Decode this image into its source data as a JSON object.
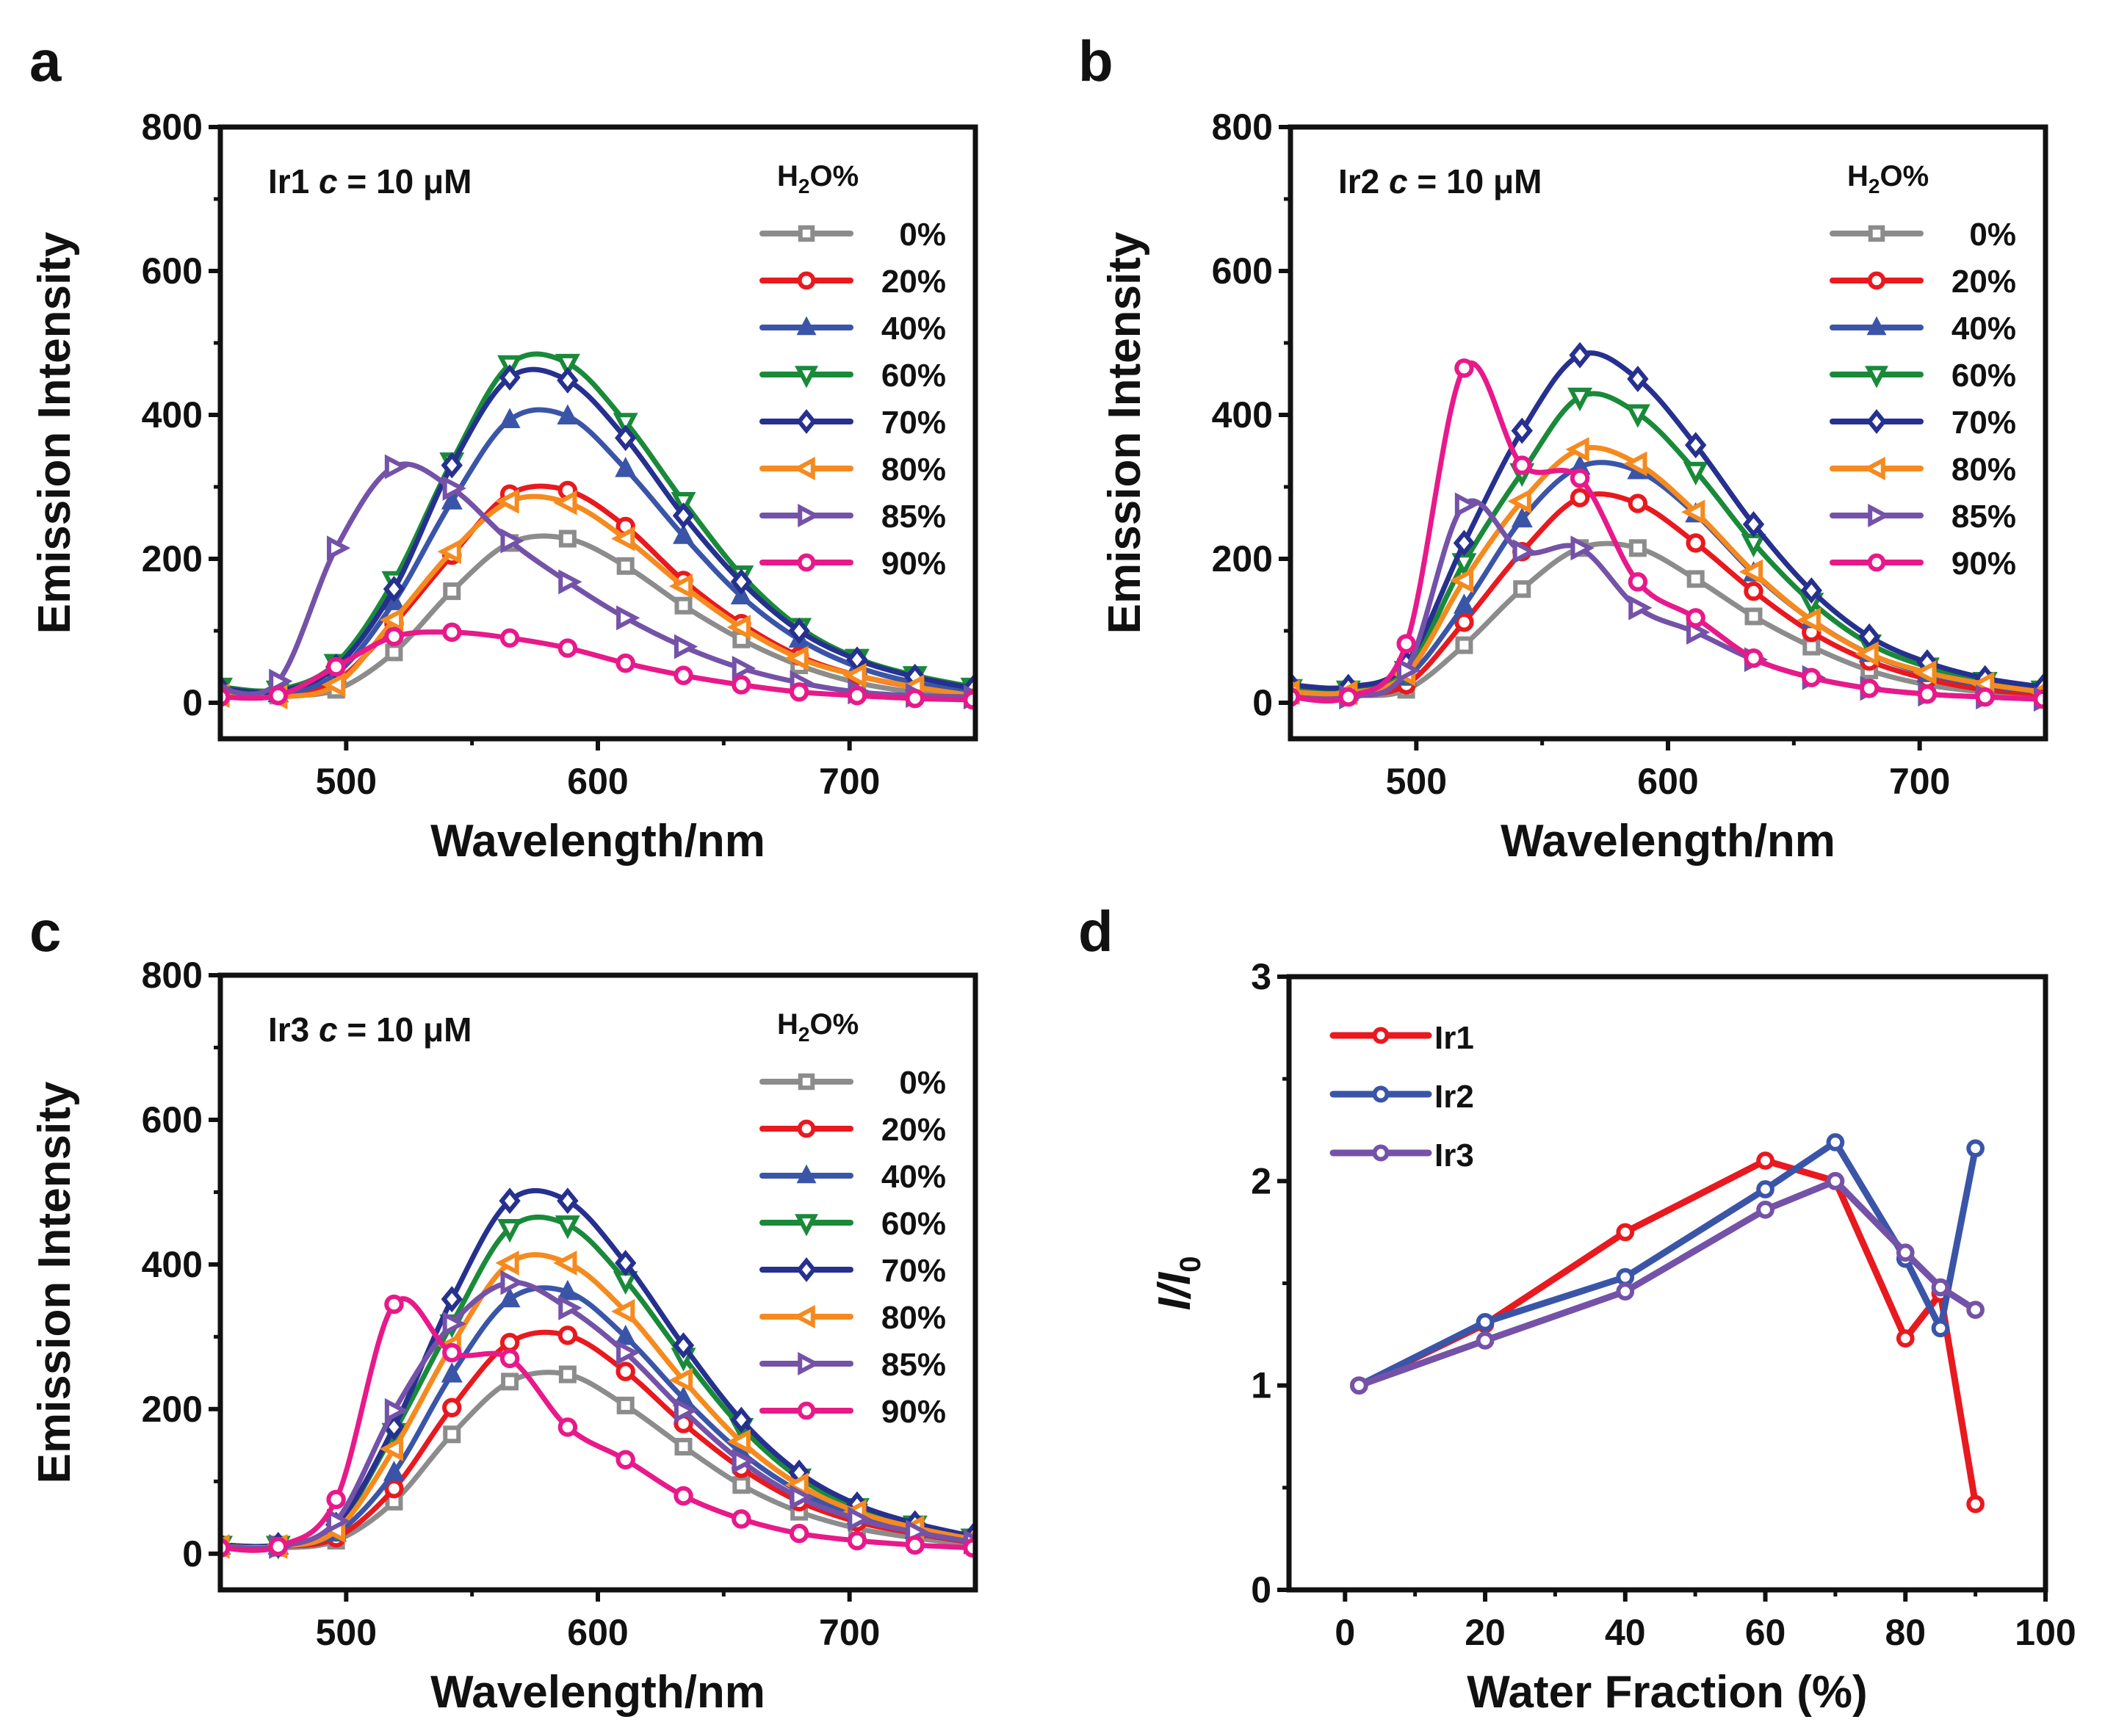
{
  "figure": {
    "panels": [
      "a",
      "b",
      "c",
      "d"
    ]
  },
  "chart_data": [
    {
      "panel": "a",
      "type": "line",
      "annotation": "Ir1 c = 10 μM",
      "annotation_parts": {
        "prefix": "Ir1 ",
        "italic": "c",
        "suffix": " = 10 μM"
      },
      "xlabel": "Wavelength/nm",
      "ylabel": "Emission Intensity",
      "xlim": [
        450,
        750
      ],
      "ylim": [
        -50,
        800
      ],
      "xticks": [
        500,
        600,
        700
      ],
      "yticks": [
        0,
        200,
        400,
        600,
        800
      ],
      "grid": false,
      "legend": {
        "title": "H2O%",
        "title_main": "H",
        "title_sub": "2",
        "title_rest": "O%",
        "position": "top-right"
      },
      "x": [
        450,
        473,
        496,
        519,
        542,
        565,
        588,
        611,
        634,
        657,
        680,
        703,
        726,
        749
      ],
      "series": [
        {
          "name": "0%",
          "color": "#8c8c8c",
          "marker": "square",
          "values": [
            10,
            10,
            18,
            70,
            155,
            222,
            228,
            190,
            135,
            88,
            52,
            28,
            15,
            10
          ]
        },
        {
          "name": "20%",
          "color": "#e8191f",
          "marker": "circle",
          "values": [
            12,
            10,
            30,
            110,
            205,
            290,
            295,
            245,
            170,
            110,
            65,
            38,
            22,
            12
          ]
        },
        {
          "name": "40%",
          "color": "#3a55a8",
          "marker": "triangle-up",
          "values": [
            15,
            12,
            40,
            140,
            280,
            393,
            398,
            325,
            232,
            148,
            88,
            50,
            28,
            15
          ]
        },
        {
          "name": "60%",
          "color": "#1a8a3a",
          "marker": "triangle-down",
          "values": [
            22,
            18,
            55,
            170,
            335,
            470,
            472,
            390,
            280,
            178,
            105,
            62,
            38,
            22
          ]
        },
        {
          "name": "70%",
          "color": "#26308f",
          "marker": "diamond",
          "values": [
            20,
            16,
            50,
            158,
            330,
            452,
            448,
            368,
            260,
            168,
            100,
            60,
            36,
            20
          ]
        },
        {
          "name": "80%",
          "color": "#f58a1f",
          "marker": "triangle-left",
          "values": [
            10,
            8,
            25,
            115,
            210,
            280,
            278,
            228,
            162,
            105,
            62,
            38,
            22,
            10
          ]
        },
        {
          "name": "85%",
          "color": "#7452a8",
          "marker": "triangle-right",
          "values": [
            18,
            30,
            215,
            328,
            298,
            225,
            168,
            118,
            78,
            48,
            28,
            15,
            10,
            8
          ]
        },
        {
          "name": "90%",
          "color": "#e8198a",
          "marker": "circle",
          "values": [
            8,
            10,
            50,
            92,
            98,
            90,
            76,
            55,
            38,
            25,
            15,
            10,
            6,
            4
          ]
        }
      ]
    },
    {
      "panel": "b",
      "type": "line",
      "annotation": "Ir2 c = 10 μM",
      "annotation_parts": {
        "prefix": "Ir2 ",
        "italic": "c",
        "suffix": " = 10 μM"
      },
      "xlabel": "Wavelength/nm",
      "ylabel": "Emission Intensity",
      "xlim": [
        450,
        750
      ],
      "ylim": [
        -50,
        800
      ],
      "xticks": [
        500,
        600,
        700
      ],
      "yticks": [
        0,
        200,
        400,
        600,
        800
      ],
      "grid": false,
      "legend": {
        "title": "H2O%",
        "title_main": "H",
        "title_sub": "2",
        "title_rest": "O%",
        "position": "top-right"
      },
      "x": [
        450,
        473,
        496,
        519,
        542,
        565,
        588,
        611,
        634,
        657,
        680,
        703,
        726,
        749
      ],
      "series": [
        {
          "name": "0%",
          "color": "#8c8c8c",
          "marker": "square",
          "values": [
            10,
            10,
            18,
            80,
            158,
            215,
            215,
            172,
            120,
            78,
            45,
            25,
            15,
            10
          ]
        },
        {
          "name": "20%",
          "color": "#e8191f",
          "marker": "circle",
          "values": [
            12,
            12,
            25,
            112,
            210,
            285,
            277,
            222,
            155,
            98,
            58,
            33,
            18,
            12
          ]
        },
        {
          "name": "40%",
          "color": "#3a55a8",
          "marker": "triangle-up",
          "values": [
            15,
            14,
            35,
            135,
            255,
            328,
            322,
            262,
            180,
            115,
            68,
            40,
            24,
            15
          ]
        },
        {
          "name": "60%",
          "color": "#1a8a3a",
          "marker": "triangle-down",
          "values": [
            20,
            18,
            45,
            195,
            320,
            425,
            402,
            322,
            222,
            140,
            82,
            50,
            30,
            18
          ]
        },
        {
          "name": "70%",
          "color": "#26308f",
          "marker": "diamond",
          "values": [
            25,
            22,
            55,
            222,
            378,
            483,
            450,
            358,
            248,
            156,
            92,
            56,
            34,
            22
          ]
        },
        {
          "name": "80%",
          "color": "#f58a1f",
          "marker": "triangle-left",
          "values": [
            15,
            14,
            40,
            170,
            280,
            352,
            332,
            265,
            182,
            115,
            68,
            42,
            26,
            15
          ]
        },
        {
          "name": "85%",
          "color": "#7452a8",
          "marker": "triangle-right",
          "values": [
            8,
            8,
            45,
            275,
            210,
            215,
            132,
            98,
            60,
            35,
            20,
            12,
            8,
            5
          ]
        },
        {
          "name": "90%",
          "color": "#e8198a",
          "marker": "circle",
          "values": [
            8,
            8,
            82,
            465,
            330,
            312,
            168,
            118,
            62,
            35,
            20,
            12,
            8,
            5
          ]
        }
      ]
    },
    {
      "panel": "c",
      "type": "line",
      "annotation": "Ir3 c = 10 μM",
      "annotation_parts": {
        "prefix": "Ir3 ",
        "italic": "c",
        "suffix": " = 10 μM"
      },
      "xlabel": "Wavelength/nm",
      "ylabel": "Emission Intensity",
      "xlim": [
        450,
        750
      ],
      "ylim": [
        -50,
        800
      ],
      "xticks": [
        500,
        600,
        700
      ],
      "yticks": [
        0,
        200,
        400,
        600,
        800
      ],
      "grid": false,
      "legend": {
        "title": "H2O%",
        "title_main": "H",
        "title_sub": "2",
        "title_rest": "O%",
        "position": "top-right"
      },
      "x": [
        450,
        473,
        496,
        519,
        542,
        565,
        588,
        611,
        634,
        657,
        680,
        703,
        726,
        749
      ],
      "series": [
        {
          "name": "0%",
          "color": "#8c8c8c",
          "marker": "square",
          "values": [
            8,
            8,
            18,
            72,
            165,
            238,
            248,
            205,
            148,
            95,
            58,
            35,
            22,
            12
          ]
        },
        {
          "name": "20%",
          "color": "#e8191f",
          "marker": "circle",
          "values": [
            8,
            10,
            22,
            90,
            202,
            292,
            302,
            252,
            180,
            118,
            72,
            44,
            28,
            15
          ]
        },
        {
          "name": "40%",
          "color": "#3a55a8",
          "marker": "triangle-up",
          "values": [
            10,
            10,
            28,
            112,
            248,
            352,
            362,
            300,
            215,
            140,
            86,
            52,
            32,
            18
          ]
        },
        {
          "name": "60%",
          "color": "#1a8a3a",
          "marker": "triangle-down",
          "values": [
            12,
            12,
            38,
            168,
            318,
            450,
            455,
            378,
            272,
            175,
            105,
            64,
            40,
            22
          ]
        },
        {
          "name": "70%",
          "color": "#26308f",
          "marker": "diamond",
          "values": [
            12,
            12,
            40,
            175,
            352,
            488,
            488,
            402,
            288,
            185,
            112,
            68,
            42,
            24
          ]
        },
        {
          "name": "80%",
          "color": "#f58a1f",
          "marker": "triangle-left",
          "values": [
            10,
            10,
            32,
            145,
            288,
            402,
            402,
            335,
            240,
            155,
            95,
            58,
            36,
            20
          ]
        },
        {
          "name": "85%",
          "color": "#7452a8",
          "marker": "triangle-right",
          "values": [
            10,
            10,
            45,
            198,
            318,
            375,
            340,
            278,
            198,
            128,
            78,
            48,
            30,
            16
          ]
        },
        {
          "name": "90%",
          "color": "#e8198a",
          "marker": "circle",
          "values": [
            8,
            10,
            75,
            345,
            278,
            270,
            175,
            130,
            80,
            48,
            28,
            18,
            12,
            8
          ]
        }
      ]
    },
    {
      "panel": "d",
      "type": "line",
      "xlabel": "Water Fraction  (%)",
      "ylabel": "I/I0",
      "ylabel_parts": {
        "main": "I/I",
        "sub": "0"
      },
      "xlim": [
        -8,
        100
      ],
      "ylim": [
        0,
        3
      ],
      "xticks": [
        0,
        20,
        40,
        60,
        80,
        100
      ],
      "yticks": [
        0,
        1,
        2,
        3
      ],
      "grid": false,
      "legend": {
        "position": "top-left"
      },
      "x": [
        2,
        20,
        40,
        60,
        70,
        80,
        85,
        90
      ],
      "series": [
        {
          "name": "Ir1",
          "color": "#e8191f",
          "marker": "circle",
          "values": [
            1.0,
            1.3,
            1.75,
            2.1,
            2.0,
            1.23,
            1.45,
            0.42
          ]
        },
        {
          "name": "Ir2",
          "color": "#3a55a8",
          "marker": "circle",
          "values": [
            1.0,
            1.31,
            1.53,
            1.96,
            2.19,
            1.62,
            1.28,
            2.16
          ]
        },
        {
          "name": "Ir3",
          "color": "#7452a8",
          "marker": "circle",
          "values": [
            1.0,
            1.22,
            1.46,
            1.86,
            2.0,
            1.65,
            1.48,
            1.37
          ]
        }
      ]
    }
  ]
}
